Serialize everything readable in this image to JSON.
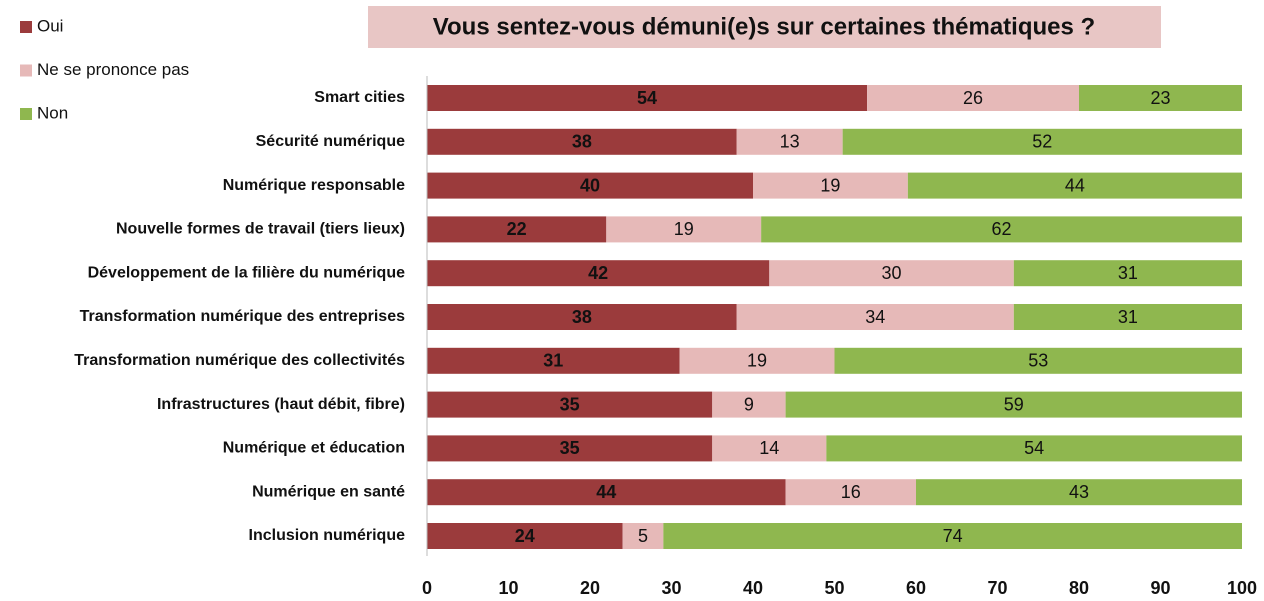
{
  "chart_data": {
    "type": "stacked-bar-horizontal",
    "title": "Vous sentez-vous démuni(e)s sur certaines thématiques ?",
    "categories": [
      "Smart cities",
      "Sécurité numérique",
      "Numérique responsable",
      "Nouvelle formes de travail (tiers lieux)",
      "Développement de la filière du numérique",
      "Transformation numérique des entreprises",
      "Transformation numérique des collectivités",
      "Infrastructures (haut débit, fibre)",
      "Numérique et éducation",
      "Numérique en santé",
      "Inclusion numérique"
    ],
    "series": [
      {
        "name": "Oui",
        "color": "#9b3b3c",
        "values": [
          54,
          38,
          40,
          22,
          42,
          38,
          31,
          35,
          35,
          44,
          24
        ]
      },
      {
        "name": "Ne se prononce pas",
        "color": "#e6b9b8",
        "values": [
          26,
          13,
          19,
          19,
          30,
          34,
          19,
          9,
          14,
          16,
          5
        ]
      },
      {
        "name": "Non",
        "color": "#8fb74f",
        "values": [
          23,
          52,
          44,
          62,
          31,
          31,
          53,
          59,
          54,
          43,
          74
        ]
      }
    ],
    "xlim": [
      0,
      100
    ],
    "xticks": [
      0,
      10,
      20,
      30,
      40,
      50,
      60,
      70,
      80,
      90,
      100
    ],
    "legend": "top-left"
  }
}
